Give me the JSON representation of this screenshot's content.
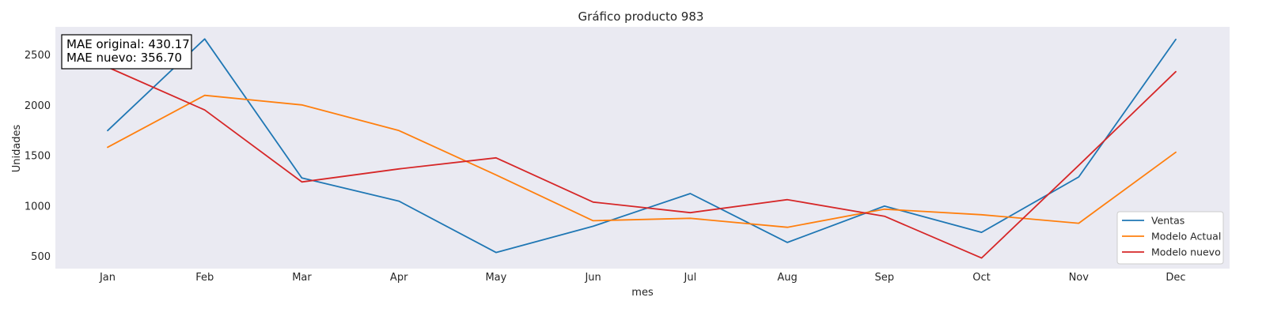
{
  "chart_data": {
    "type": "line",
    "title": "Gráfico producto 983",
    "xlabel": "mes",
    "ylabel": "Unidades",
    "categories": [
      "Jan",
      "Feb",
      "Mar",
      "Apr",
      "May",
      "Jun",
      "Jul",
      "Aug",
      "Sep",
      "Oct",
      "Nov",
      "Dec"
    ],
    "yticks": [
      500,
      1000,
      1500,
      2000,
      2500
    ],
    "ylim": [
      380,
      2780
    ],
    "grid": false,
    "legend_position": "bottom-right",
    "series": [
      {
        "name": "Ventas",
        "color": "#1f77b4",
        "values": [
          1750,
          2660,
          1280,
          1050,
          540,
          800,
          1125,
          640,
          1000,
          740,
          1290,
          2655
        ]
      },
      {
        "name": "Modelo Actual",
        "color": "#ff7f0e",
        "values": [
          1585,
          2100,
          2005,
          1750,
          1310,
          855,
          880,
          790,
          970,
          915,
          830,
          1535
        ]
      },
      {
        "name": "Modelo nuevo",
        "color": "#d62728",
        "values": [
          2380,
          1955,
          1240,
          1370,
          1480,
          1040,
          935,
          1065,
          900,
          485,
          1405,
          2335
        ]
      }
    ],
    "annotation": {
      "lines": [
        "MAE original: 430.17",
        "MAE nuevo: 356.70"
      ]
    }
  }
}
